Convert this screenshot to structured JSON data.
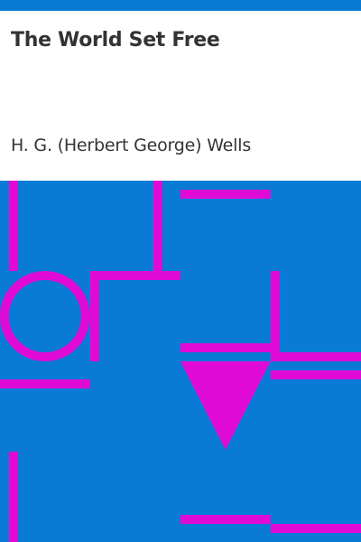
{
  "book": {
    "title": "The World Set Free",
    "author": "H. G. (Herbert George) Wells"
  },
  "colors": {
    "accent_blue": "#0a7bd5",
    "pattern_magenta": "#e00ad6",
    "text": "#333333",
    "background": "#ffffff"
  }
}
